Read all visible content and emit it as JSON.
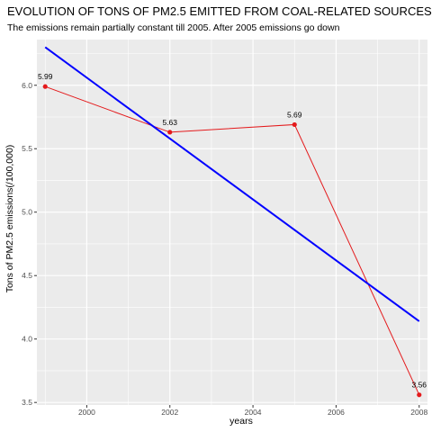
{
  "chart_data": {
    "type": "line",
    "title": "EVOLUTION OF TONS OF PM2.5 EMITTED FROM COAL-RELATED SOURCES",
    "subtitle": "The emissions remain partially constant till 2005. After 2005 emissions go down",
    "xlabel": "years",
    "ylabel": "Tons of PM2.5 emissions(/100,000)",
    "xlim": [
      1998.8,
      2008.2
    ],
    "ylim": [
      3.48,
      6.36
    ],
    "x_ticks": [
      2000,
      2002,
      2004,
      2006,
      2008
    ],
    "y_ticks": [
      3.5,
      4.0,
      4.5,
      5.0,
      5.5,
      6.0
    ],
    "x_tick_labels": [
      "2000",
      "2002",
      "2004",
      "2006",
      "2008"
    ],
    "y_tick_labels": [
      "3.5",
      "4.0",
      "4.5",
      "5.0",
      "5.5",
      "6.0"
    ],
    "grid": true,
    "series": [
      {
        "kind": "line-with-points",
        "color": "#e41a1c",
        "x": [
          1999,
          2002,
          2005,
          2008
        ],
        "y": [
          5.99,
          5.63,
          5.69,
          3.56
        ],
        "labels": [
          "5.99",
          "5.63",
          "5.69",
          "3.56"
        ]
      },
      {
        "kind": "trend-line",
        "color": "#0000ff",
        "x": [
          1999,
          2008
        ],
        "y": [
          6.3,
          4.14
        ]
      }
    ]
  }
}
